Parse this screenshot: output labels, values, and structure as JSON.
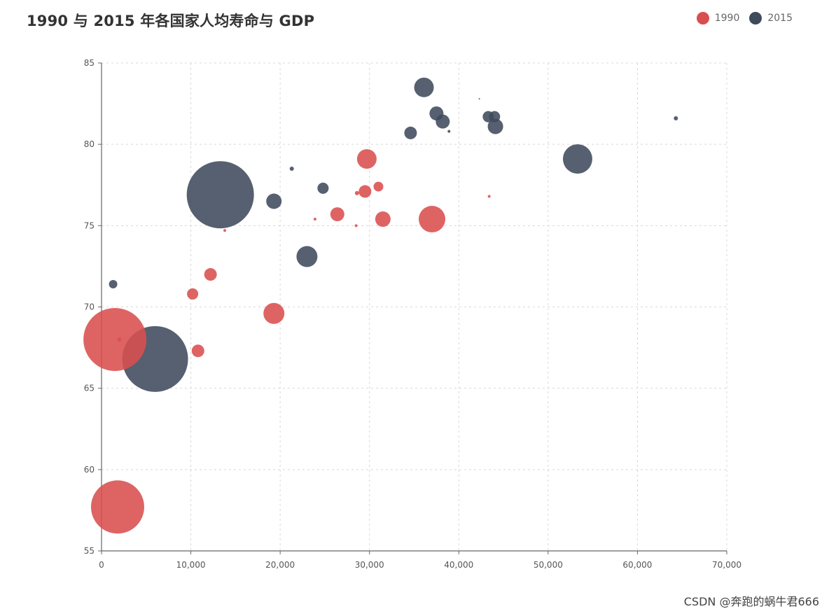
{
  "title": "1990 与 2015 年各国家人均寿命与 GDP",
  "legend": [
    {
      "label": "1990",
      "color": "#d94e4e"
    },
    {
      "label": "2015",
      "color": "#3f4a5c"
    }
  ],
  "watermark": "CSDN @奔跑的蜗牛君666",
  "chart_data": {
    "type": "scatter",
    "title": "1990 与 2015 年各国家人均寿命与 GDP",
    "xlabel": "",
    "ylabel": "",
    "xlim": [
      0,
      70000
    ],
    "ylim": [
      55,
      85
    ],
    "x_ticks": [
      0,
      10000,
      20000,
      30000,
      40000,
      50000,
      60000,
      70000
    ],
    "x_tick_labels": [
      "0",
      "10,000",
      "20,000",
      "30,000",
      "40,000",
      "50,000",
      "60,000",
      "70,000"
    ],
    "y_ticks": [
      55,
      60,
      65,
      70,
      75,
      80,
      85
    ],
    "y_tick_labels": [
      "55",
      "60",
      "65",
      "70",
      "75",
      "80",
      "85"
    ],
    "grid": true,
    "legend_position": "top-right",
    "series": [
      {
        "name": "1990",
        "color": "#d94e4e",
        "points": [
          {
            "x": 1500,
            "y": 68,
            "size": 45
          },
          {
            "x": 1800,
            "y": 57.7,
            "size": 38
          },
          {
            "x": 2000,
            "y": 68,
            "size": 3
          },
          {
            "x": 10200,
            "y": 70.8,
            "size": 8
          },
          {
            "x": 10800,
            "y": 67.3,
            "size": 9
          },
          {
            "x": 12200,
            "y": 72,
            "size": 9
          },
          {
            "x": 13800,
            "y": 74.7,
            "size": 2
          },
          {
            "x": 19300,
            "y": 69.6,
            "size": 15
          },
          {
            "x": 23900,
            "y": 75.4,
            "size": 2
          },
          {
            "x": 26400,
            "y": 75.7,
            "size": 10
          },
          {
            "x": 28500,
            "y": 75,
            "size": 2
          },
          {
            "x": 28600,
            "y": 77,
            "size": 3
          },
          {
            "x": 29500,
            "y": 77.1,
            "size": 9
          },
          {
            "x": 29700,
            "y": 79.1,
            "size": 14
          },
          {
            "x": 31000,
            "y": 77.4,
            "size": 7
          },
          {
            "x": 31500,
            "y": 75.4,
            "size": 11
          },
          {
            "x": 37000,
            "y": 75.4,
            "size": 19
          },
          {
            "x": 43400,
            "y": 76.8,
            "size": 2
          }
        ]
      },
      {
        "name": "2015",
        "color": "#3f4a5c",
        "points": [
          {
            "x": 1300,
            "y": 71.4,
            "size": 6
          },
          {
            "x": 6000,
            "y": 66.8,
            "size": 47
          },
          {
            "x": 13300,
            "y": 76.9,
            "size": 48
          },
          {
            "x": 19300,
            "y": 76.5,
            "size": 11
          },
          {
            "x": 21300,
            "y": 78.5,
            "size": 3
          },
          {
            "x": 23000,
            "y": 73.1,
            "size": 15
          },
          {
            "x": 24800,
            "y": 77.3,
            "size": 8
          },
          {
            "x": 34600,
            "y": 80.7,
            "size": 9
          },
          {
            "x": 36100,
            "y": 83.5,
            "size": 14
          },
          {
            "x": 37500,
            "y": 81.9,
            "size": 10
          },
          {
            "x": 38200,
            "y": 81.4,
            "size": 10
          },
          {
            "x": 38900,
            "y": 80.8,
            "size": 2
          },
          {
            "x": 42300,
            "y": 82.8,
            "size": 1
          },
          {
            "x": 43300,
            "y": 81.7,
            "size": 8
          },
          {
            "x": 44000,
            "y": 81.7,
            "size": 8
          },
          {
            "x": 44100,
            "y": 81.1,
            "size": 11
          },
          {
            "x": 53300,
            "y": 79.1,
            "size": 21
          },
          {
            "x": 64300,
            "y": 81.6,
            "size": 3
          }
        ]
      }
    ]
  }
}
